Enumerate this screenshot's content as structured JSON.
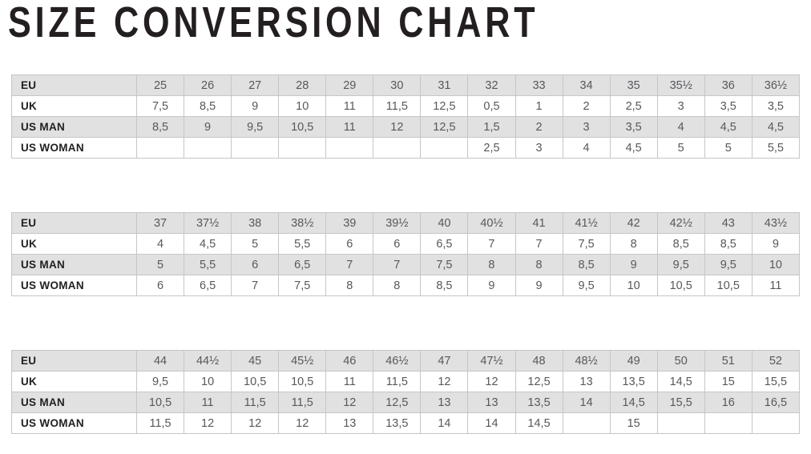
{
  "page": {
    "title": "SIZE CONVERSION CHART"
  },
  "colors": {
    "row_shaded": "#e1e1e2",
    "row_plain": "#ffffff",
    "table_border": "#c5c6c8",
    "label_text": "#232021",
    "data_text": "#57585b",
    "title_text": "#231f20"
  },
  "chart_data": [
    {
      "type": "table",
      "title": "EU 25 - 36½",
      "rows": [
        {
          "label": "EU",
          "values": [
            "25",
            "26",
            "27",
            "28",
            "29",
            "30",
            "31",
            "32",
            "33",
            "34",
            "35",
            "35½",
            "36",
            "36½"
          ]
        },
        {
          "label": "UK",
          "values": [
            "7,5",
            "8,5",
            "9",
            "10",
            "11",
            "11,5",
            "12,5",
            "0,5",
            "1",
            "2",
            "2,5",
            "3",
            "3,5",
            "3,5"
          ]
        },
        {
          "label": "US MAN",
          "values": [
            "8,5",
            "9",
            "9,5",
            "10,5",
            "11",
            "12",
            "12,5",
            "1,5",
            "2",
            "3",
            "3,5",
            "4",
            "4,5",
            "4,5"
          ]
        },
        {
          "label": "US WOMAN",
          "values": [
            "",
            "",
            "",
            "",
            "",
            "",
            "",
            "2,5",
            "3",
            "4",
            "4,5",
            "5",
            "5",
            "5,5"
          ]
        }
      ]
    },
    {
      "type": "table",
      "title": "EU 37 - 43½",
      "rows": [
        {
          "label": "EU",
          "values": [
            "37",
            "37½",
            "38",
            "38½",
            "39",
            "39½",
            "40",
            "40½",
            "41",
            "41½",
            "42",
            "42½",
            "43",
            "43½"
          ]
        },
        {
          "label": "UK",
          "values": [
            "4",
            "4,5",
            "5",
            "5,5",
            "6",
            "6",
            "6,5",
            "7",
            "7",
            "7,5",
            "8",
            "8,5",
            "8,5",
            "9"
          ]
        },
        {
          "label": "US MAN",
          "values": [
            "5",
            "5,5",
            "6",
            "6,5",
            "7",
            "7",
            "7,5",
            "8",
            "8",
            "8,5",
            "9",
            "9,5",
            "9,5",
            "10"
          ]
        },
        {
          "label": "US WOMAN",
          "values": [
            "6",
            "6,5",
            "7",
            "7,5",
            "8",
            "8",
            "8,5",
            "9",
            "9",
            "9,5",
            "10",
            "10,5",
            "10,5",
            "11"
          ]
        }
      ]
    },
    {
      "type": "table",
      "title": "EU 44 - 52",
      "rows": [
        {
          "label": "EU",
          "values": [
            "44",
            "44½",
            "45",
            "45½",
            "46",
            "46½",
            "47",
            "47½",
            "48",
            "48½",
            "49",
            "50",
            "51",
            "52"
          ]
        },
        {
          "label": "UK",
          "values": [
            "9,5",
            "10",
            "10,5",
            "10,5",
            "11",
            "11,5",
            "12",
            "12",
            "12,5",
            "13",
            "13,5",
            "14,5",
            "15",
            "15,5"
          ]
        },
        {
          "label": "US MAN",
          "values": [
            "10,5",
            "11",
            "11,5",
            "11,5",
            "12",
            "12,5",
            "13",
            "13",
            "13,5",
            "14",
            "14,5",
            "15,5",
            "16",
            "16,5"
          ]
        },
        {
          "label": "US WOMAN",
          "values": [
            "11,5",
            "12",
            "12",
            "12",
            "13",
            "13,5",
            "14",
            "14",
            "14,5",
            "",
            "15",
            "",
            "",
            ""
          ]
        }
      ]
    }
  ]
}
